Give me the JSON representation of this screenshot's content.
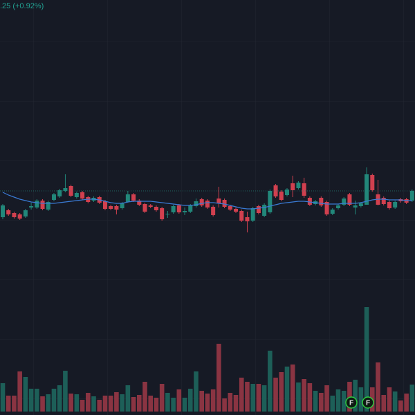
{
  "chart_data": {
    "type": "candlestick",
    "header": ".25 (+0.92%)",
    "open": [
      68.6,
      69.6,
      69.2,
      69.0,
      68.7,
      70.0,
      70.0,
      71.0,
      69.7,
      71.1,
      71.6,
      72.4,
      73.1,
      71.5,
      72.2,
      71.5,
      71.0,
      71.5,
      70.9,
      70.2,
      70.2,
      69.9,
      70.8,
      71.9,
      71.0,
      70.5,
      70.3,
      70.1,
      69.9,
      69.0,
      69.3,
      70.3,
      69.3,
      69.4,
      70.2,
      71.2,
      71.0,
      70.1,
      71.3,
      71.1,
      70.2,
      69.8,
      69.5,
      68.6,
      68.1,
      70.2,
      68.8,
      69.3,
      73.2,
      72.3,
      71.8,
      73.5,
      72.8,
      73.5,
      71.4,
      70.5,
      71.4,
      70.8,
      69.1,
      69.9,
      70.4,
      71.9,
      70.0,
      70.2,
      70.4,
      74.7,
      71.9,
      71.4,
      70.8,
      70.0,
      71.2,
      71.2,
      71.0
    ],
    "high": [
      70.5,
      69.8,
      69.4,
      69.2,
      69.8,
      70.7,
      71.2,
      71.2,
      71.0,
      72.1,
      72.7,
      74.8,
      73.3,
      72.3,
      72.4,
      71.7,
      71.6,
      71.7,
      71.1,
      70.4,
      70.4,
      70.8,
      72.4,
      72.1,
      71.2,
      70.7,
      70.5,
      70.3,
      70.1,
      69.5,
      70.4,
      70.5,
      70.0,
      70.5,
      71.3,
      71.4,
      71.2,
      70.3,
      73.0,
      71.3,
      70.4,
      70.0,
      69.7,
      69.4,
      70.1,
      70.4,
      70.6,
      72.6,
      73.4,
      72.5,
      72.8,
      74.6,
      73.8,
      74.3,
      71.6,
      71.1,
      71.6,
      71.0,
      69.9,
      70.5,
      71.5,
      72.1,
      71.0,
      70.8,
      75.8,
      74.9,
      74.0,
      71.6,
      71.0,
      71.0,
      71.4,
      71.4,
      72.6
    ],
    "low": [
      68.3,
      68.8,
      68.4,
      68.2,
      68.5,
      69.7,
      69.8,
      69.6,
      69.5,
      70.9,
      71.4,
      72.2,
      71.5,
      71.3,
      71.1,
      70.6,
      70.8,
      70.5,
      69.6,
      69.6,
      69.0,
      69.7,
      70.7,
      70.8,
      70.2,
      69.2,
      69.9,
      69.4,
      68.1,
      68.5,
      69.1,
      69.1,
      68.9,
      69.2,
      70.0,
      70.1,
      69.8,
      68.7,
      70.0,
      69.9,
      69.5,
      69.2,
      67.9,
      66.4,
      67.9,
      69.0,
      68.6,
      69.1,
      71.4,
      70.9,
      71.6,
      71.5,
      72.6,
      71.4,
      70.2,
      70.3,
      70.1,
      68.8,
      68.9,
      69.7,
      70.2,
      70.2,
      69.0,
      70.0,
      70.4,
      72.3,
      70.3,
      70.3,
      69.7,
      69.8,
      70.7,
      70.5,
      70.8
    ],
    "close": [
      70.3,
      69.0,
      68.6,
      68.4,
      69.6,
      70.2,
      71.0,
      69.8,
      70.8,
      71.9,
      72.5,
      72.8,
      71.7,
      72.1,
      71.3,
      70.8,
      71.4,
      70.7,
      69.8,
      69.8,
      69.7,
      70.6,
      71.9,
      71.0,
      70.4,
      69.4,
      70.1,
      69.6,
      68.3,
      69.1,
      70.2,
      69.3,
      69.5,
      70.3,
      70.9,
      70.3,
      70.0,
      68.9,
      70.6,
      70.1,
      69.7,
      69.4,
      68.1,
      68.0,
      69.9,
      69.2,
      70.4,
      72.4,
      71.6,
      71.1,
      72.6,
      72.5,
      73.6,
      71.7,
      70.4,
      70.9,
      70.3,
      69.0,
      69.7,
      70.3,
      71.3,
      70.4,
      70.3,
      70.6,
      74.8,
      72.5,
      70.4,
      70.5,
      69.9,
      70.8,
      70.9,
      70.7,
      72.4
    ],
    "volume": [
      41,
      23,
      23,
      58,
      50,
      33,
      33,
      22,
      25,
      33,
      38,
      59,
      26,
      25,
      17,
      27,
      22,
      17,
      23,
      23,
      28,
      25,
      38,
      21,
      24,
      43,
      23,
      20,
      40,
      27,
      20,
      32,
      20,
      33,
      58,
      30,
      26,
      32,
      98,
      19,
      27,
      24,
      49,
      43,
      40,
      40,
      38,
      88,
      49,
      57,
      65,
      68,
      42,
      47,
      41,
      30,
      27,
      38,
      23,
      32,
      30,
      43,
      46,
      35,
      151,
      35,
      71,
      24,
      35,
      29,
      16,
      26,
      39
    ],
    "ma": [
      72.2,
      71.8,
      71.5,
      71.2,
      71.0,
      70.8,
      70.7,
      70.6,
      70.6,
      70.6,
      70.7,
      70.8,
      70.9,
      71.0,
      71.1,
      71.2,
      71.2,
      71.1,
      70.9,
      70.7,
      70.6,
      70.6,
      70.8,
      70.9,
      70.9,
      70.9,
      70.9,
      70.8,
      70.7,
      70.6,
      70.5,
      70.4,
      70.3,
      70.3,
      70.4,
      70.6,
      70.7,
      70.7,
      70.6,
      70.5,
      70.3,
      70.1,
      69.9,
      69.8,
      69.8,
      69.9,
      70.0,
      70.2,
      70.4,
      70.6,
      70.7,
      70.8,
      70.9,
      70.9,
      70.8,
      70.7,
      70.6,
      70.5,
      70.5,
      70.5,
      70.6,
      70.6,
      70.6,
      70.7,
      70.9,
      71.1,
      71.2,
      71.2,
      71.1,
      71.1,
      71.1,
      71.0,
      71.0
    ],
    "ylim": [
      40,
      100
    ],
    "vlim": [
      0,
      195
    ],
    "up_color": "#22877a",
    "down_color": "#d1404f",
    "up_volume_color": "#1d5f58",
    "down_volume_color": "#8a3442",
    "ma_color": "#3a7bd5",
    "events": [
      "F",
      "F"
    ]
  }
}
